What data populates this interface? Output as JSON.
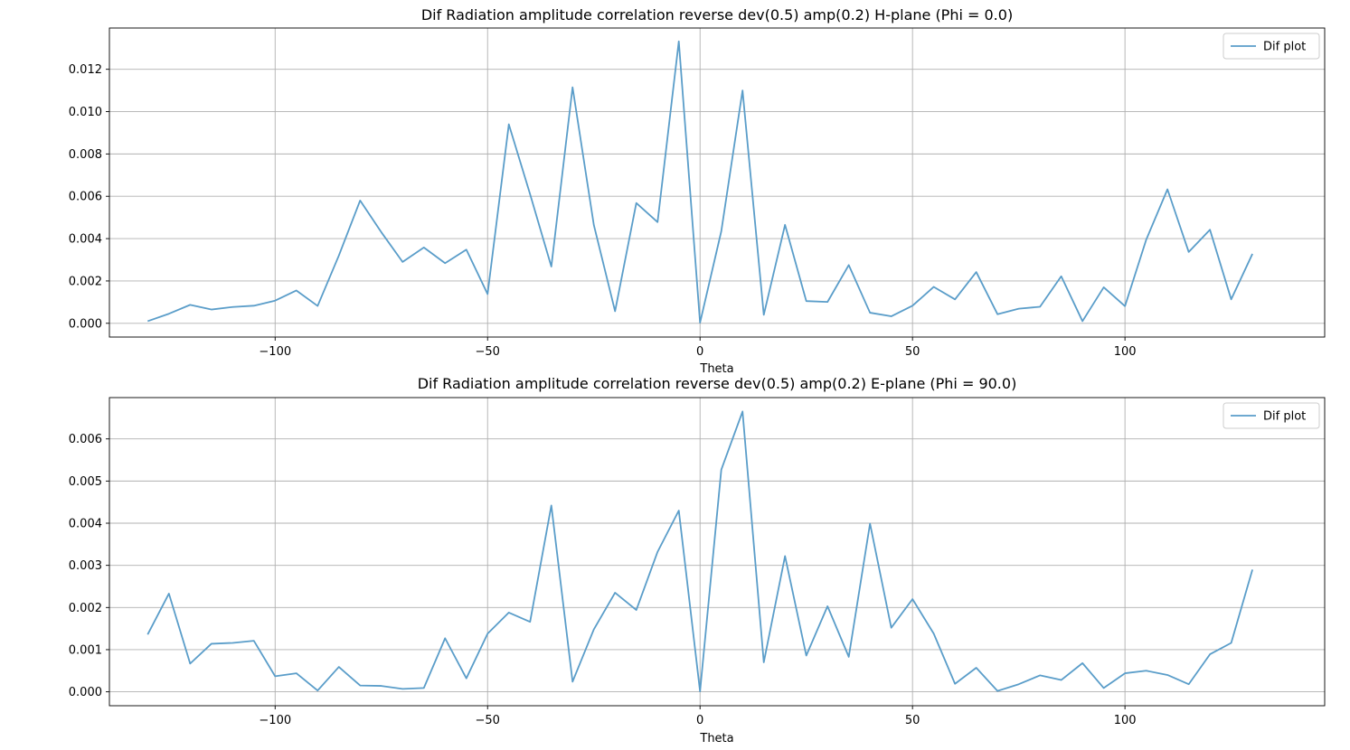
{
  "figure": {
    "background": "#ffffff",
    "line_color": "#5a9dc9",
    "grid_color": "#b0b0b0"
  },
  "chart_data": [
    {
      "type": "line",
      "title": "Dif Radiation amplitude correlation reverse dev(0.5) amp(0.2) H-plane (Phi = 0.0)",
      "xlabel": "Theta",
      "ylabel": "",
      "xlim": [
        -139,
        147
      ],
      "ylim": [
        -0.00065,
        0.01395
      ],
      "xticks": [
        -100,
        -50,
        0,
        50,
        100
      ],
      "xtick_labels": [
        "−100",
        "−50",
        "0",
        "50",
        "100"
      ],
      "yticks": [
        0,
        0.002,
        0.004,
        0.006,
        0.008,
        0.01,
        0.012
      ],
      "ytick_labels": [
        "0.000",
        "0.002",
        "0.004",
        "0.006",
        "0.008",
        "0.010",
        "0.012"
      ],
      "grid": true,
      "legend": "top-right",
      "series": [
        {
          "name": "Dif plot",
          "x": [
            -130,
            -125,
            -120,
            -115,
            -110,
            -105,
            -100,
            -95,
            -90,
            -85,
            -80,
            -75,
            -70,
            -65,
            -60,
            -55,
            -50,
            -45,
            -40,
            -35,
            -30,
            -25,
            -20,
            -15,
            -10,
            -5,
            0,
            5,
            10,
            15,
            20,
            25,
            30,
            35,
            40,
            45,
            50,
            55,
            60,
            65,
            70,
            75,
            80,
            85,
            90,
            95,
            100,
            105,
            110,
            115,
            120,
            125,
            130
          ],
          "y": [
            0.0001,
            0.00045,
            0.00087,
            0.00065,
            0.00077,
            0.00083,
            0.00107,
            0.00155,
            0.00082,
            0.0032,
            0.0058,
            0.0043,
            0.0029,
            0.00358,
            0.00284,
            0.00348,
            0.00138,
            0.0094,
            0.0061,
            0.00268,
            0.01115,
            0.00465,
            0.00057,
            0.00568,
            0.00478,
            0.01332,
            3e-05,
            0.00435,
            0.011,
            0.0004,
            0.00465,
            0.00105,
            0.00101,
            0.00275,
            0.0005,
            0.00033,
            0.00083,
            0.00172,
            0.00113,
            0.00242,
            0.00043,
            0.00069,
            0.00078,
            0.00222,
            0.0001,
            0.0017,
            0.00081,
            0.00395,
            0.00633,
            0.00337,
            0.00442,
            0.00113,
            0.00328
          ]
        }
      ]
    },
    {
      "type": "line",
      "title": "Dif Radiation amplitude correlation reverse dev(0.5) amp(0.2) E-plane (Phi = 90.0)",
      "xlabel": "Theta",
      "ylabel": "",
      "xlim": [
        -139,
        147
      ],
      "ylim": [
        -0.00033,
        0.00698
      ],
      "xticks": [
        -100,
        -50,
        0,
        50,
        100
      ],
      "xtick_labels": [
        "−100",
        "−50",
        "0",
        "50",
        "100"
      ],
      "yticks": [
        0,
        0.001,
        0.002,
        0.003,
        0.004,
        0.005,
        0.006
      ],
      "ytick_labels": [
        "0.000",
        "0.001",
        "0.002",
        "0.003",
        "0.004",
        "0.005",
        "0.006"
      ],
      "grid": true,
      "legend": "top-right",
      "series": [
        {
          "name": "Dif plot",
          "x": [
            -130,
            -125,
            -120,
            -115,
            -110,
            -105,
            -100,
            -95,
            -90,
            -85,
            -80,
            -75,
            -70,
            -65,
            -60,
            -55,
            -50,
            -45,
            -40,
            -35,
            -30,
            -25,
            -20,
            -15,
            -10,
            -5,
            0,
            5,
            10,
            15,
            20,
            25,
            30,
            35,
            40,
            45,
            50,
            55,
            60,
            65,
            70,
            75,
            80,
            85,
            90,
            95,
            100,
            105,
            110,
            115,
            120,
            125,
            130
          ],
          "y": [
            0.00136,
            0.00233,
            0.00067,
            0.00114,
            0.00116,
            0.00121,
            0.00037,
            0.00044,
            3e-05,
            0.00059,
            0.00015,
            0.00014,
            7e-05,
            9e-05,
            0.00127,
            0.00032,
            0.00138,
            0.00188,
            0.00166,
            0.00442,
            0.00024,
            0.00148,
            0.00235,
            0.00194,
            0.00332,
            0.0043,
            1e-05,
            0.00527,
            0.00665,
            0.0007,
            0.00322,
            0.00086,
            0.00203,
            0.00083,
            0.00399,
            0.00152,
            0.0022,
            0.00138,
            0.00019,
            0.00057,
            2e-05,
            0.00018,
            0.00039,
            0.00028,
            0.00068,
            9e-05,
            0.00044,
            0.0005,
            0.0004,
            0.00018,
            0.00089,
            0.00116,
            0.0029
          ]
        }
      ]
    }
  ]
}
